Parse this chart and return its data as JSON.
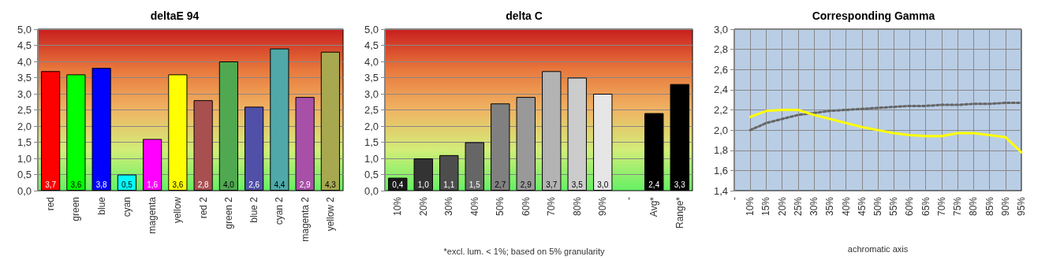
{
  "chart_data": [
    {
      "type": "bar",
      "title": "deltaE 94",
      "categories": [
        "red",
        "green",
        "blue",
        "cyan",
        "magenta",
        "yellow",
        "red 2",
        "green 2",
        "blue 2",
        "cyan 2",
        "magenta 2",
        "yellow 2"
      ],
      "series": [
        {
          "values": [
            3.7,
            3.6,
            3.8,
            0.5,
            1.6,
            3.6,
            2.8,
            4.0,
            2.6,
            4.4,
            2.9,
            4.3
          ],
          "colors": [
            "#ff0000",
            "#00ff00",
            "#0000ff",
            "#00ffff",
            "#ff00ff",
            "#ffff00",
            "#a85050",
            "#50a850",
            "#5050a8",
            "#50a8a8",
            "#a850a8",
            "#a8a850"
          ],
          "value_labels": [
            "3,7",
            "3,6",
            "3,8",
            "0,5",
            "1,6",
            "3,6",
            "2,8",
            "4,0",
            "2,6",
            "4,4",
            "2,9",
            "4,3"
          ]
        }
      ],
      "ylim": [
        0,
        5
      ],
      "yticks": [
        {
          "value": 0,
          "label": "0,0"
        },
        {
          "value": 0.5,
          "label": "0,5"
        },
        {
          "value": 1,
          "label": "1,0"
        },
        {
          "value": 1.5,
          "label": "1,5"
        },
        {
          "value": 2,
          "label": "2,0"
        },
        {
          "value": 2.5,
          "label": "2,5"
        },
        {
          "value": 3,
          "label": "3,0"
        },
        {
          "value": 3.5,
          "label": "3,5"
        },
        {
          "value": 4,
          "label": "4,0"
        },
        {
          "value": 4.5,
          "label": "4,5"
        },
        {
          "value": 5,
          "label": "5,0"
        }
      ],
      "grid": "y"
    },
    {
      "type": "bar",
      "title": "delta C",
      "categories": [
        "10%",
        "20%",
        "30%",
        "40%",
        "50%",
        "60%",
        "70%",
        "80%",
        "90%",
        "-",
        "Avg*",
        "Range*"
      ],
      "series": [
        {
          "values": [
            0.4,
            1.0,
            1.1,
            1.5,
            2.7,
            2.9,
            3.7,
            3.5,
            3.0,
            null,
            2.4,
            3.3
          ],
          "colors": [
            "#1a1a1a",
            "#333333",
            "#4d4d4d",
            "#666666",
            "#808080",
            "#999999",
            "#b3b3b3",
            "#cccccc",
            "#e6e6e6",
            null,
            "#000000",
            "#000000"
          ],
          "value_labels": [
            "0,4",
            "1,0",
            "1,1",
            "1,5",
            "2,7",
            "2,9",
            "3,7",
            "3,5",
            "3,0",
            null,
            "2,4",
            "3,3"
          ]
        }
      ],
      "ylim": [
        0,
        5
      ],
      "yticks": [
        {
          "value": 0,
          "label": "0,0"
        },
        {
          "value": 0.5,
          "label": "0,5"
        },
        {
          "value": 1,
          "label": "1,0"
        },
        {
          "value": 1.5,
          "label": "1,5"
        },
        {
          "value": 2,
          "label": "2,0"
        },
        {
          "value": 2.5,
          "label": "2,5"
        },
        {
          "value": 3,
          "label": "3,0"
        },
        {
          "value": 3.5,
          "label": "3,5"
        },
        {
          "value": 4,
          "label": "4,0"
        },
        {
          "value": 4.5,
          "label": "4,5"
        },
        {
          "value": 5,
          "label": "5,0"
        }
      ],
      "grid": "y",
      "annotations": [
        "*excl. lum. < 1%; based on 5% granularity"
      ]
    },
    {
      "type": "line",
      "title": "Corresponding Gamma",
      "xlabel": "achromatic axis",
      "categories": [
        "-",
        "10%",
        "15%",
        "20%",
        "25%",
        "30%",
        "35%",
        "40%",
        "45%",
        "50%",
        "55%",
        "60%",
        "65%",
        "70%",
        "75%",
        "80%",
        "85%",
        "90%",
        "95%"
      ],
      "series": [
        {
          "color": "#666666",
          "line_style": "dotted",
          "values": [
            null,
            2.0,
            2.07,
            2.11,
            2.15,
            2.17,
            2.19,
            2.2,
            2.21,
            2.22,
            2.23,
            2.24,
            2.24,
            2.25,
            2.25,
            2.26,
            2.26,
            2.27,
            2.27
          ]
        },
        {
          "color": "#ffff00",
          "line_style": "solid",
          "values": [
            null,
            2.13,
            2.19,
            2.2,
            2.2,
            2.15,
            2.11,
            2.07,
            2.03,
            2.0,
            1.97,
            1.95,
            1.94,
            1.94,
            1.97,
            1.97,
            1.95,
            1.93,
            1.78
          ]
        }
      ],
      "ylim": [
        1.4,
        3.0
      ],
      "yticks": [
        {
          "value": 1.4,
          "label": "1,4"
        },
        {
          "value": 1.6,
          "label": "1,6"
        },
        {
          "value": 1.8,
          "label": "1,8"
        },
        {
          "value": 2.0,
          "label": "2,0"
        },
        {
          "value": 2.2,
          "label": "2,2"
        },
        {
          "value": 2.4,
          "label": "2,4"
        },
        {
          "value": 2.6,
          "label": "2,6"
        },
        {
          "value": 2.8,
          "label": "2,8"
        },
        {
          "value": 3.0,
          "label": "3,0"
        }
      ],
      "grid": true,
      "marker": "none"
    }
  ]
}
